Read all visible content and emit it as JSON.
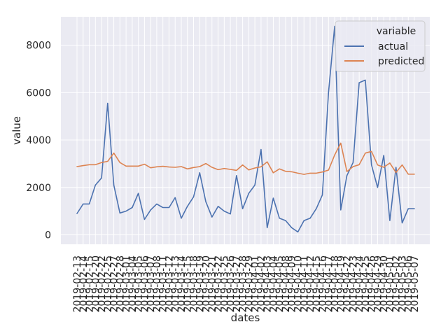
{
  "chart_data": {
    "type": "line",
    "xlabel": "dates",
    "ylabel": "value",
    "ylim": [
      -400,
      9200
    ],
    "yticks": [
      0,
      2000,
      4000,
      6000,
      8000
    ],
    "ytick_labels": [
      "0",
      "2000",
      "4000",
      "6000",
      "8000"
    ],
    "grid": true,
    "legend": {
      "position": "top-right",
      "title": "variable"
    },
    "x": [
      "2019-02-13",
      "2019-02-14",
      "2019-02-15",
      "2019-02-20",
      "2019-02-22",
      "2019-02-25",
      "2019-02-27",
      "2019-02-28",
      "2019-03-01",
      "2019-03-04",
      "2019-03-05",
      "2019-03-06",
      "2019-03-07",
      "2019-03-08",
      "2019-03-11",
      "2019-03-12",
      "2019-03-13",
      "2019-03-14",
      "2019-03-15",
      "2019-03-18",
      "2019-03-19",
      "2019-03-20",
      "2019-03-21",
      "2019-03-22",
      "2019-03-25",
      "2019-03-26",
      "2019-03-27",
      "2019-03-28",
      "2019-03-29",
      "2019-04-01",
      "2019-04-02",
      "2019-04-03",
      "2019-04-04",
      "2019-04-05",
      "2019-04-08",
      "2019-04-09",
      "2019-04-10",
      "2019-04-11",
      "2019-04-12",
      "2019-04-15",
      "2019-04-16",
      "2019-04-17",
      "2019-04-18",
      "2019-04-19",
      "2019-04-22",
      "2019-04-23",
      "2019-04-24",
      "2019-04-25",
      "2019-04-26",
      "2019-04-29",
      "2019-04-30",
      "2019-05-01",
      "2019-05-02",
      "2019-05-03",
      "2019-05-06",
      "2019-05-07"
    ],
    "series": [
      {
        "name": "actual",
        "color": "#4c72b0",
        "values": [
          900,
          1300,
          1300,
          2100,
          2400,
          5550,
          2100,
          920,
          1000,
          1150,
          1750,
          650,
          1050,
          1300,
          1150,
          1150,
          1570,
          700,
          1200,
          1600,
          2620,
          1400,
          750,
          1200,
          1000,
          880,
          2500,
          1100,
          1750,
          2100,
          3600,
          300,
          1550,
          700,
          600,
          300,
          120,
          600,
          700,
          1100,
          1680,
          6000,
          8800,
          1050,
          2500,
          3050,
          6420,
          6530,
          2950,
          2000,
          3350,
          600,
          2850,
          500,
          1100,
          1100
        ]
      },
      {
        "name": "predicted",
        "color": "#dd8452",
        "values": [
          2880,
          2920,
          2960,
          2960,
          3050,
          3100,
          3450,
          3050,
          2900,
          2900,
          2900,
          2980,
          2830,
          2870,
          2890,
          2860,
          2850,
          2880,
          2780,
          2840,
          2880,
          3010,
          2850,
          2750,
          2800,
          2760,
          2720,
          2950,
          2740,
          2820,
          2870,
          3080,
          2620,
          2780,
          2680,
          2660,
          2600,
          2550,
          2600,
          2600,
          2650,
          2730,
          3370,
          3870,
          2670,
          2880,
          2960,
          3450,
          3520,
          2950,
          2850,
          3030,
          2630,
          2950,
          2560,
          2560
        ]
      }
    ]
  }
}
